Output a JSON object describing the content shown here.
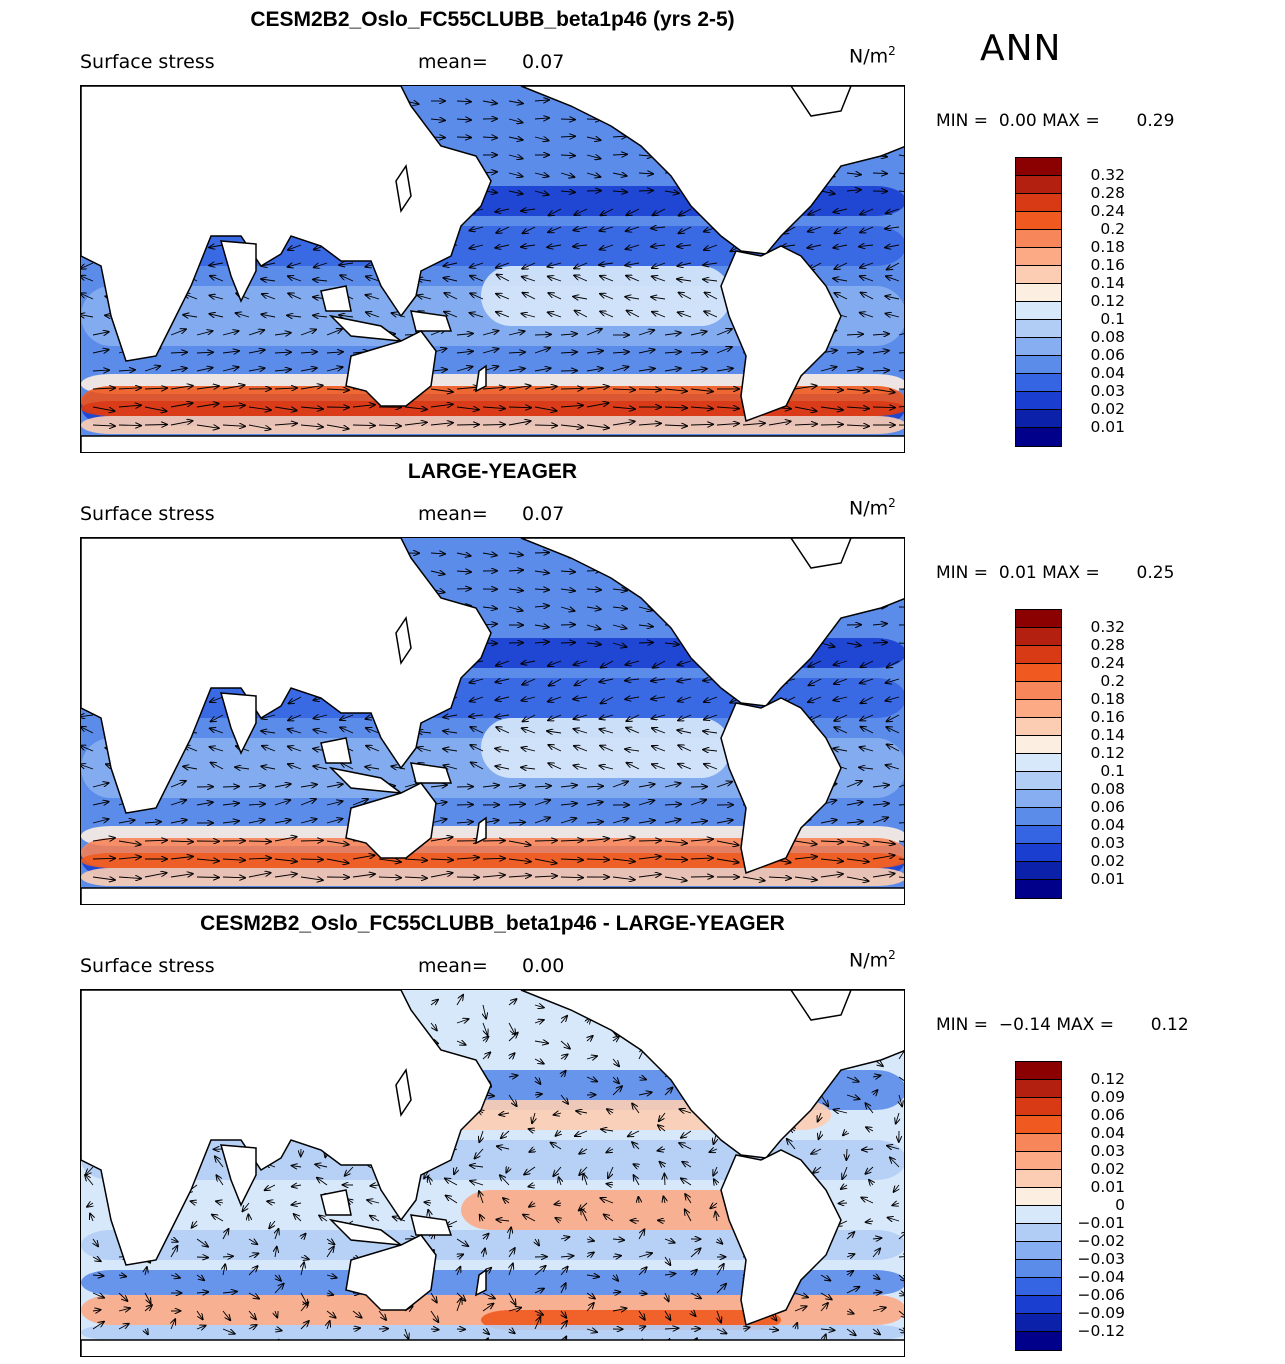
{
  "season": "ANN",
  "panels": [
    {
      "title": "CESM2B2_Oslo_FC55CLUBB_beta1p46 (yrs 2-5)",
      "variable": "Surface stress",
      "mean_label": "mean=",
      "mean_value": "0.07",
      "units": "N/m",
      "units_exp": "2",
      "min_label": "MIN =",
      "min_value": "0.00",
      "max_label": "MAX =",
      "max_value": "0.29",
      "kind": "abs",
      "colorbar": {
        "labels": [
          "0.32",
          "0.28",
          "0.24",
          "0.2",
          "0.18",
          "0.16",
          "0.14",
          "0.12",
          "0.1",
          "0.08",
          "0.06",
          "0.04",
          "0.03",
          "0.02",
          "0.01"
        ],
        "colors": [
          "#8b0000",
          "#b3200f",
          "#d93a16",
          "#f05a20",
          "#f7865a",
          "#fcaa86",
          "#fdcdb3",
          "#fdeee2",
          "#d8e8fb",
          "#b2cdf5",
          "#87aef0",
          "#5c8cea",
          "#3665e3",
          "#1a3fd0",
          "#0b21aa",
          "#00008b"
        ]
      }
    },
    {
      "title": "LARGE-YEAGER",
      "variable": "Surface stress",
      "mean_label": "mean=",
      "mean_value": "0.07",
      "units": "N/m",
      "units_exp": "2",
      "min_label": "MIN =",
      "min_value": "0.01",
      "max_label": "MAX =",
      "max_value": "0.25",
      "kind": "abs",
      "colorbar": {
        "labels": [
          "0.32",
          "0.28",
          "0.24",
          "0.2",
          "0.18",
          "0.16",
          "0.14",
          "0.12",
          "0.1",
          "0.08",
          "0.06",
          "0.04",
          "0.03",
          "0.02",
          "0.01"
        ],
        "colors": [
          "#8b0000",
          "#b3200f",
          "#d93a16",
          "#f05a20",
          "#f7865a",
          "#fcaa86",
          "#fdcdb3",
          "#fdeee2",
          "#d8e8fb",
          "#b2cdf5",
          "#87aef0",
          "#5c8cea",
          "#3665e3",
          "#1a3fd0",
          "#0b21aa",
          "#00008b"
        ]
      }
    },
    {
      "title": "CESM2B2_Oslo_FC55CLUBB_beta1p46 - LARGE-YEAGER",
      "variable": "Surface stress",
      "mean_label": "mean=",
      "mean_value": "0.00",
      "units": "N/m",
      "units_exp": "2",
      "min_label": "MIN =",
      "min_value": "−0.14",
      "max_label": "MAX =",
      "max_value": "0.12",
      "kind": "diff",
      "colorbar": {
        "labels": [
          "0.12",
          "0.09",
          "0.06",
          "0.04",
          "0.03",
          "0.02",
          "0.01",
          "0",
          "−0.01",
          "−0.02",
          "−0.03",
          "−0.04",
          "−0.06",
          "−0.09",
          "−0.12"
        ],
        "colors": [
          "#8b0000",
          "#b3200f",
          "#d93a16",
          "#f05a20",
          "#f7865a",
          "#fcaa86",
          "#fdcdb3",
          "#fdeee2",
          "#d8e8fb",
          "#b2cdf5",
          "#87aef0",
          "#5c8cea",
          "#3665e3",
          "#1a3fd0",
          "#0b21aa",
          "#00008b"
        ]
      }
    }
  ]
}
